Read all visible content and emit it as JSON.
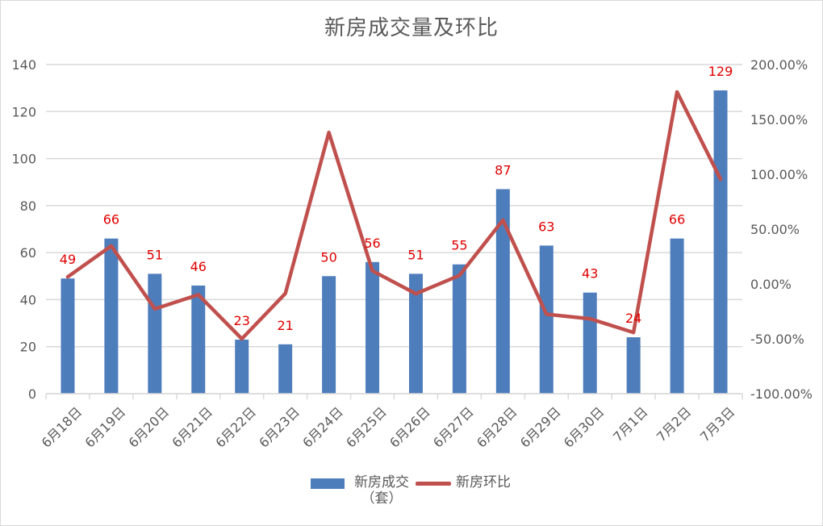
{
  "chart_data": {
    "type": "bar+line",
    "title": "新房成交量及环比",
    "categories": [
      "6月18日",
      "6月19日",
      "6月20日",
      "6月21日",
      "6月22日",
      "6月23日",
      "6月24日",
      "6月25日",
      "6月26日",
      "6月27日",
      "6月28日",
      "6月29日",
      "6月30日",
      "7月1日",
      "7月2日",
      "7月3日"
    ],
    "series": [
      {
        "name": "新房成交（套）",
        "type": "bar",
        "axis": "left",
        "color": "#4e7dbc",
        "values": [
          49,
          66,
          51,
          46,
          23,
          21,
          50,
          56,
          51,
          55,
          87,
          63,
          43,
          24,
          66,
          129
        ],
        "data_labels": true,
        "label_color": "#e00000"
      },
      {
        "name": "新房环比",
        "type": "line",
        "axis": "right",
        "color": "#c0504d",
        "values": [
          6.5,
          34.7,
          -22.7,
          -9.8,
          -50.0,
          -8.7,
          138.1,
          12.0,
          -8.9,
          7.8,
          58.2,
          -27.6,
          -31.7,
          -44.2,
          175.0,
          95.5
        ],
        "unit": "%"
      }
    ],
    "y_left": {
      "ylim": [
        0,
        140
      ],
      "ticks": [
        "0",
        "20",
        "40",
        "60",
        "80",
        "100",
        "120",
        "140"
      ]
    },
    "y_right": {
      "ylim": [
        -100,
        200
      ],
      "ticks": [
        "-100.00%",
        "-50.00%",
        "0.00%",
        "50.00%",
        "100.00%",
        "150.00%",
        "200.00%"
      ]
    },
    "grid": true,
    "legend_position": "bottom"
  },
  "legend": {
    "bar_label_line1": "新房成交",
    "bar_label_line2": "（套）",
    "line_label": "新房环比"
  }
}
